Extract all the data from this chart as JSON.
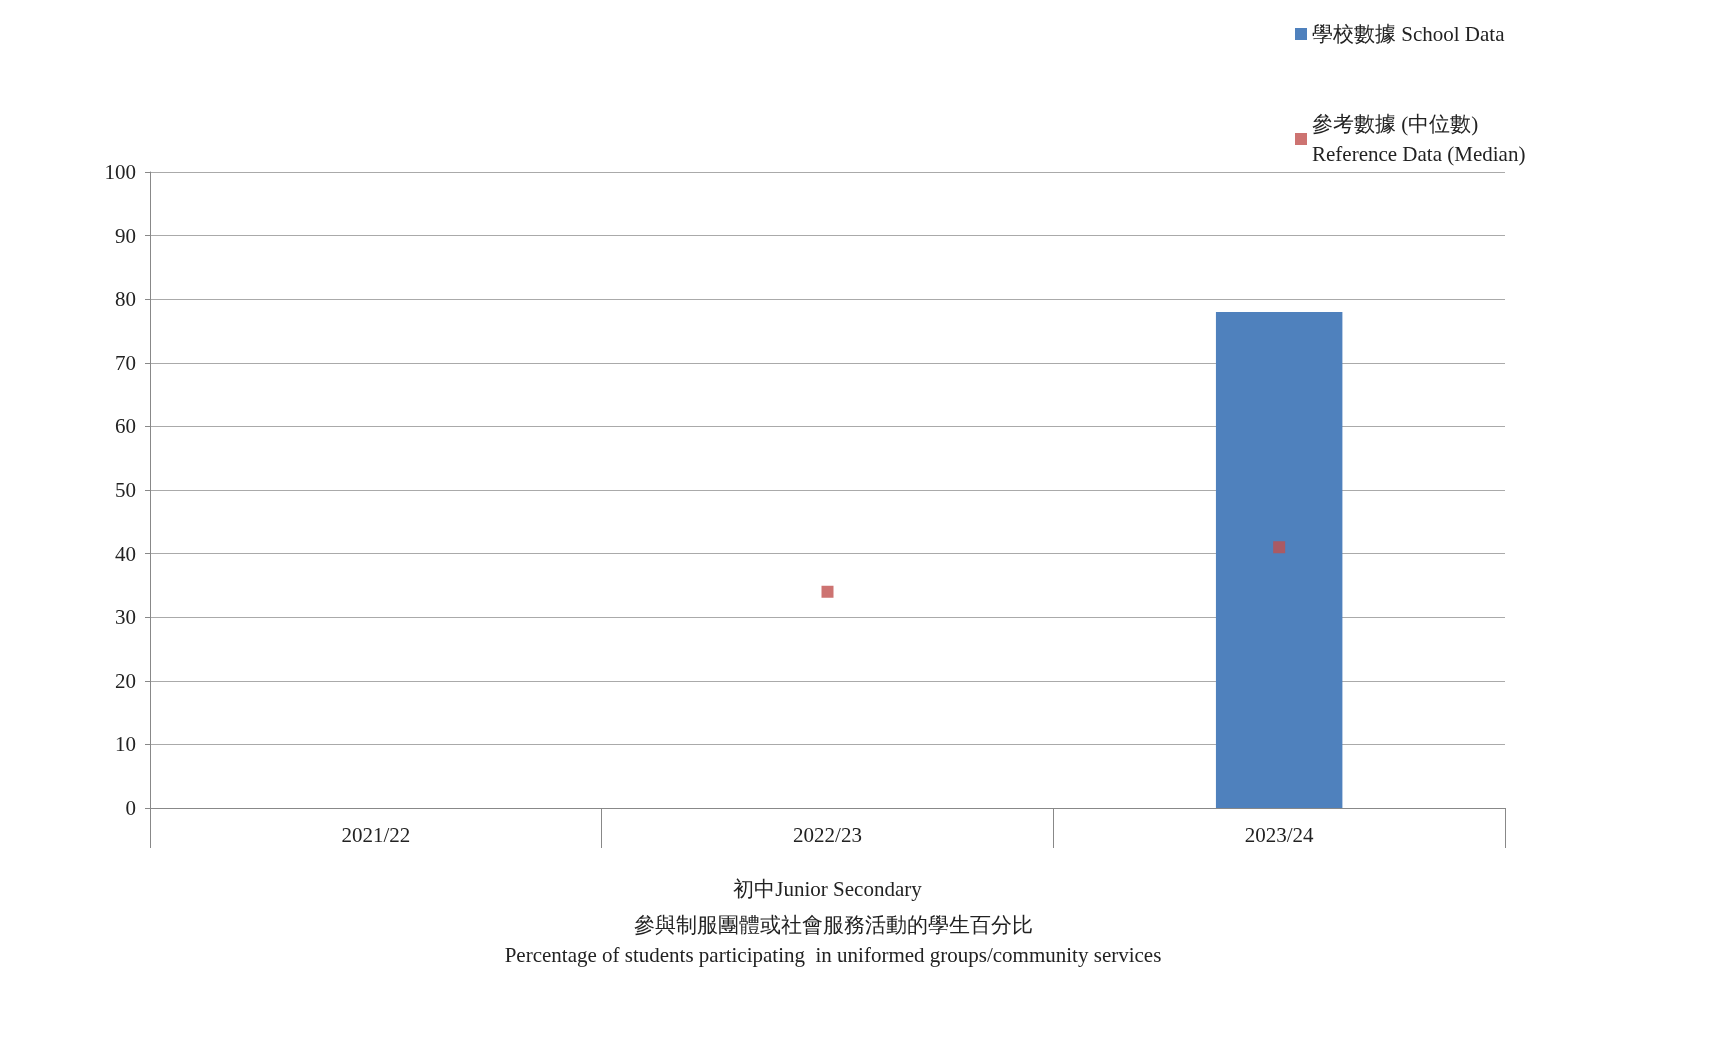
{
  "chart_data": {
    "type": "bar",
    "title": "參與制服團體或社會服務活動的學生百分比\nPercentage of students participating  in uniformed groups/community services",
    "xlabel": "初中Junior Secondary",
    "categories": [
      "2021/22",
      "2022/23",
      "2023/24"
    ],
    "series": [
      {
        "name": "學校數據 School Data",
        "color": "#4f81bd",
        "values": [
          null,
          null,
          78
        ]
      },
      {
        "name": "參考數據 (中位數)\nReference Data (Median)",
        "type": "scatter",
        "color": "#c0504d",
        "values": [
          null,
          34,
          41
        ]
      }
    ],
    "ylim": [
      0,
      100
    ],
    "yticks": [
      0,
      10,
      20,
      30,
      40,
      50,
      60,
      70,
      80,
      90,
      100
    ],
    "grid": "y",
    "legend": "top right",
    "marker": "square"
  }
}
